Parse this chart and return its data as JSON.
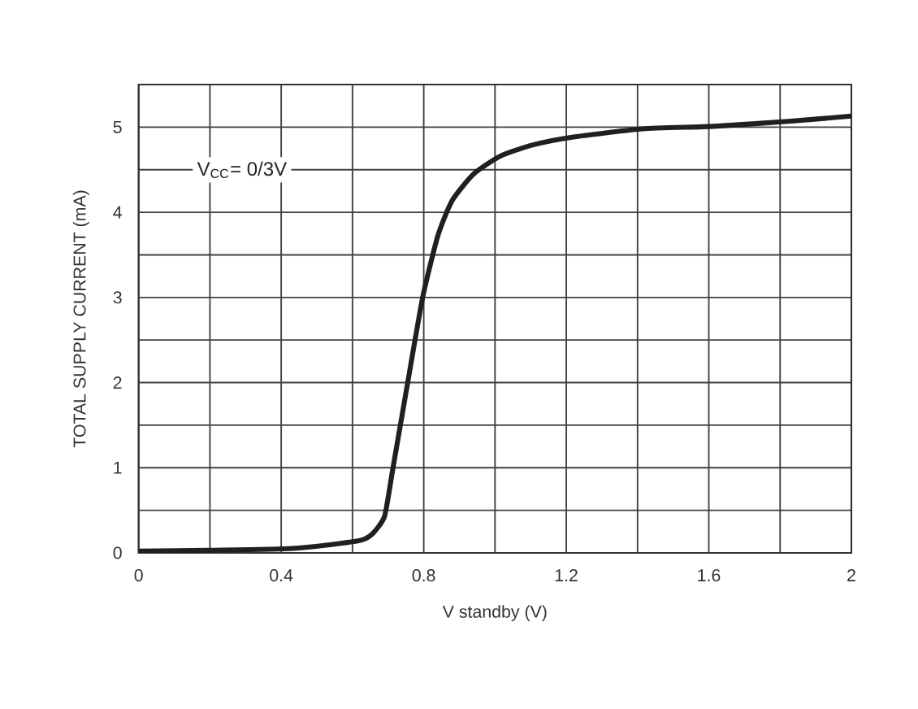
{
  "chart_data": {
    "type": "line",
    "xlabel": "V standby (V)",
    "ylabel": "TOTAL SUPPLY CURRENT (mA)",
    "annotations": [
      "V$_{CC}$= 0/3V"
    ],
    "x": [
      0,
      0.42,
      0.615,
      0.655,
      0.69,
      0.713,
      0.755,
      0.797,
      0.84,
      0.88,
      0.94,
      1.015,
      1.105,
      1.213,
      1.413,
      1.613,
      1.83,
      2
    ],
    "series": [
      {
        "color": "#231f20",
        "values": [
          0.02,
          0.05,
          0.14,
          0.22,
          0.43,
          0.98,
          2.0,
          3.0,
          3.73,
          4.14,
          4.45,
          4.66,
          4.79,
          4.88,
          4.98,
          5.01,
          5.07,
          5.13
        ]
      }
    ],
    "xlim": [
      0,
      2
    ],
    "ylim": [
      0,
      5.5
    ],
    "xticks": [
      0,
      {
        "value": 0.2,
        "label": null
      },
      0.4,
      {
        "value": 0.6,
        "label": null
      },
      0.8,
      {
        "value": 1.0,
        "label": null
      },
      1.2,
      {
        "value": 1.4,
        "label": null
      },
      1.6,
      {
        "value": 1.8,
        "label": null
      },
      2
    ],
    "yticks": [
      0,
      {
        "value": 0.5,
        "label": null
      },
      1,
      {
        "value": 1.5,
        "label": null
      },
      2,
      {
        "value": 2.5,
        "label": null
      },
      3,
      {
        "value": 3.5,
        "label": null
      },
      4,
      {
        "value": 4.5,
        "label": null
      },
      5,
      {
        "value": 5.5,
        "label": null
      }
    ],
    "grid": true,
    "marker": "none",
    "line_style": "solid"
  }
}
